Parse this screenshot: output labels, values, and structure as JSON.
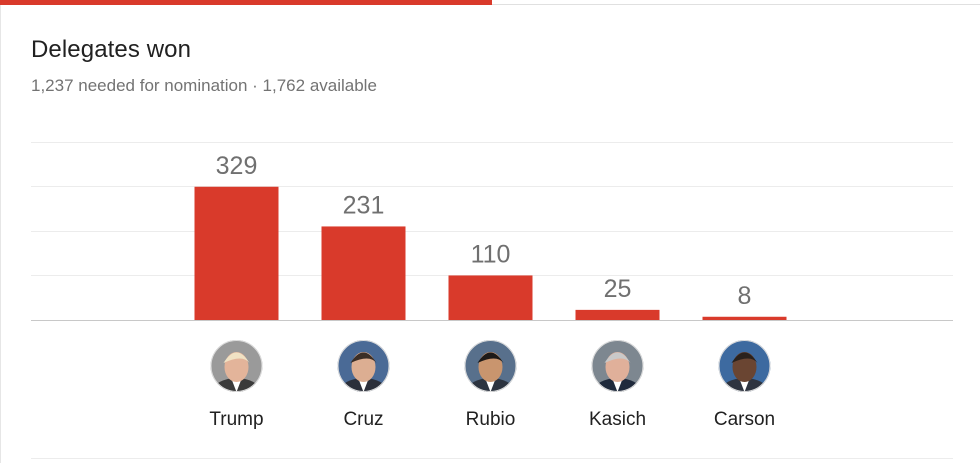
{
  "header": {
    "title": "Delegates won",
    "subtitle": "1,237 needed for nomination · 1,762 available"
  },
  "colors": {
    "bar": "#d93a2b",
    "progress": "#d93a2b",
    "grid": "#ececec",
    "baseline": "#c8c8c8"
  },
  "chart_data": {
    "type": "bar",
    "title": "Delegates won",
    "subtitle": "1,237 needed for nomination · 1,762 available",
    "categories": [
      "Trump",
      "Cruz",
      "Rubio",
      "Kasich",
      "Carson"
    ],
    "values": [
      329,
      231,
      110,
      25,
      8
    ],
    "xlabel": "",
    "ylabel": "",
    "ylim": [
      0,
      450
    ],
    "grid": true,
    "legend": "none",
    "avatars": [
      "avatar-trump",
      "avatar-cruz",
      "avatar-rubio",
      "avatar-kasich",
      "avatar-carson"
    ]
  }
}
